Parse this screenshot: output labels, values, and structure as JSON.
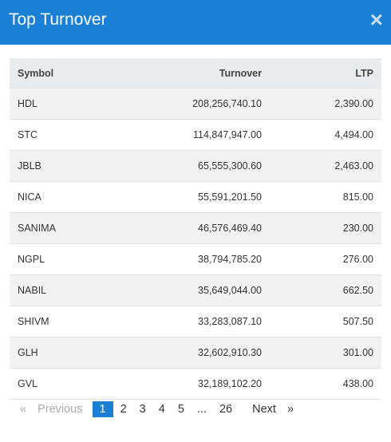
{
  "header": {
    "title": "Top Turnover",
    "close": "×"
  },
  "table": {
    "columns": [
      "Symbol",
      "Turnover",
      "LTP"
    ],
    "rows": [
      [
        "HDL",
        "208,256,740.10",
        "2,390.00"
      ],
      [
        "STC",
        "114,847,947.00",
        "4,494.00"
      ],
      [
        "JBLB",
        "65,555,300.60",
        "2,463.00"
      ],
      [
        "NICA",
        "55,591,201.50",
        "815.00"
      ],
      [
        "SANIMA",
        "46,576,469.40",
        "230.00"
      ],
      [
        "NGPL",
        "38,794,785.20",
        "276.00"
      ],
      [
        "NABIL",
        "35,649,044.00",
        "662.50"
      ],
      [
        "SHIVM",
        "33,283,087.10",
        "507.50"
      ],
      [
        "GLH",
        "32,602,910.30",
        "301.00"
      ],
      [
        "GVL",
        "32,189,102.20",
        "438.00"
      ]
    ]
  },
  "pagination": {
    "first": "«",
    "previous": "Previous",
    "pages": [
      "1",
      "2",
      "3",
      "4",
      "5",
      "...",
      "26"
    ],
    "active": 0,
    "next": "Next",
    "last": "»"
  }
}
